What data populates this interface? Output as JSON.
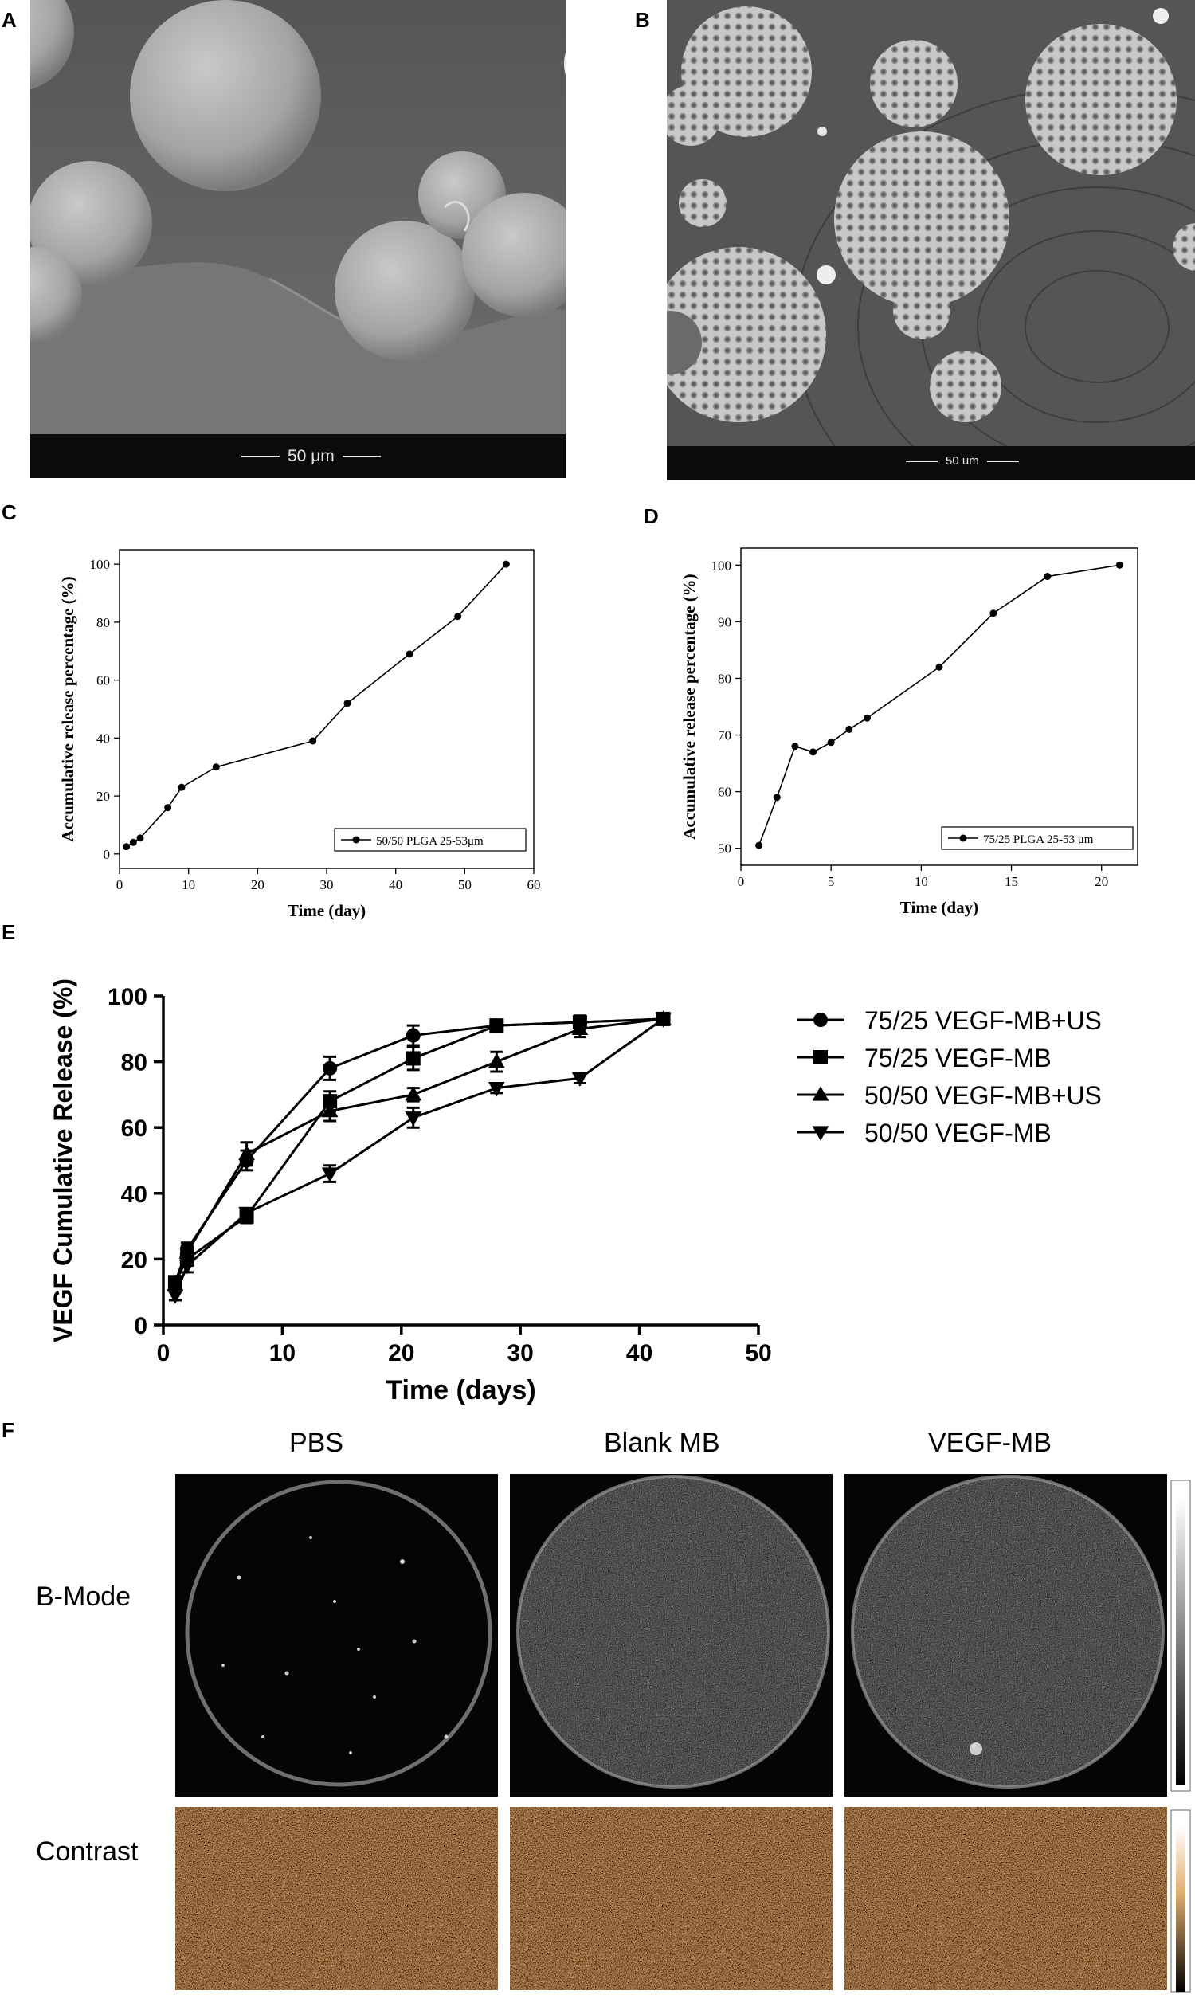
{
  "panel_letters": {
    "a": "A",
    "b": "B",
    "c": "C",
    "d": "D",
    "e": "E",
    "f": "F"
  },
  "sem": {
    "a_scale": "50 μm",
    "b_scale": "50 um"
  },
  "chart_data": [
    {
      "id": "C",
      "type": "line",
      "title": "",
      "xlabel": "Time (day)",
      "ylabel": "Accumulative release percentage (%)",
      "xlim": [
        0,
        60
      ],
      "ylim": [
        -5,
        105
      ],
      "xticks": [
        0,
        10,
        20,
        30,
        40,
        50,
        60
      ],
      "yticks": [
        0,
        20,
        40,
        60,
        80,
        100
      ],
      "legend_position": "bottom-right",
      "series": [
        {
          "name": "50/50 PLGA  25-53μm",
          "x": [
            1,
            2,
            3,
            7,
            9,
            14,
            28,
            33,
            42,
            49,
            56
          ],
          "y": [
            2.5,
            4,
            5.5,
            16,
            23,
            30,
            39,
            52,
            69,
            82,
            100
          ]
        }
      ]
    },
    {
      "id": "D",
      "type": "line",
      "title": "",
      "xlabel": "Time (day)",
      "ylabel": "Accumulative release percentage (%)",
      "xlim": [
        0,
        22
      ],
      "ylim": [
        47,
        103
      ],
      "xticks": [
        0,
        5,
        10,
        15,
        20
      ],
      "yticks": [
        50,
        60,
        70,
        80,
        90,
        100
      ],
      "legend_position": "bottom-right",
      "series": [
        {
          "name": "75/25 PLGA    25-53 μm",
          "x": [
            1,
            2,
            3,
            4,
            5,
            6,
            7,
            11,
            14,
            17,
            21
          ],
          "y": [
            50.5,
            59,
            68,
            67,
            68.7,
            71,
            73,
            82,
            91.5,
            98,
            100
          ]
        }
      ]
    },
    {
      "id": "E",
      "type": "line",
      "title": "",
      "xlabel": "Time (days)",
      "ylabel": "VEGF Cumulative Release (%)",
      "xlim": [
        0,
        50
      ],
      "ylim": [
        0,
        100
      ],
      "xticks": [
        0,
        10,
        20,
        30,
        40,
        50
      ],
      "yticks": [
        0,
        20,
        40,
        60,
        80,
        100
      ],
      "legend_position": "right",
      "series": [
        {
          "name": "75/25 VEGF-MB+US",
          "marker": "circle",
          "x": [
            1,
            2,
            7,
            14,
            21,
            28,
            35,
            42
          ],
          "y": [
            13,
            23,
            50,
            78,
            88,
            91,
            92,
            93
          ],
          "err": [
            1.5,
            2,
            3,
            3.5,
            3,
            1.5,
            1.5,
            1
          ]
        },
        {
          "name": "75/25 VEGF-MB",
          "marker": "square",
          "x": [
            1,
            2,
            7,
            14,
            21,
            28,
            35,
            42
          ],
          "y": [
            13,
            20,
            33,
            68,
            81,
            91,
            92,
            93
          ],
          "err": [
            1.5,
            2,
            2,
            3,
            3.5,
            1,
            2,
            1
          ]
        },
        {
          "name": "50/50 VEGF-MB+US",
          "marker": "triangle-up",
          "x": [
            1,
            2,
            7,
            14,
            21,
            28,
            35,
            42
          ],
          "y": [
            12,
            22,
            52,
            65,
            70,
            80,
            90,
            93
          ],
          "err": [
            1.5,
            2,
            3.5,
            3,
            2,
            3,
            2.5,
            1
          ]
        },
        {
          "name": "50/50 VEGF-MB",
          "marker": "triangle-down",
          "x": [
            1,
            2,
            7,
            14,
            21,
            28,
            35,
            42
          ],
          "y": [
            9,
            18,
            34,
            46,
            63,
            72,
            75,
            93
          ],
          "err": [
            1.5,
            2,
            1.5,
            2.5,
            3,
            1.5,
            1.5,
            1
          ]
        }
      ]
    }
  ],
  "panel_f": {
    "columns": [
      "PBS",
      "Blank MB",
      "VEGF-MB"
    ],
    "rows": [
      "B-Mode",
      "Contrast"
    ]
  }
}
